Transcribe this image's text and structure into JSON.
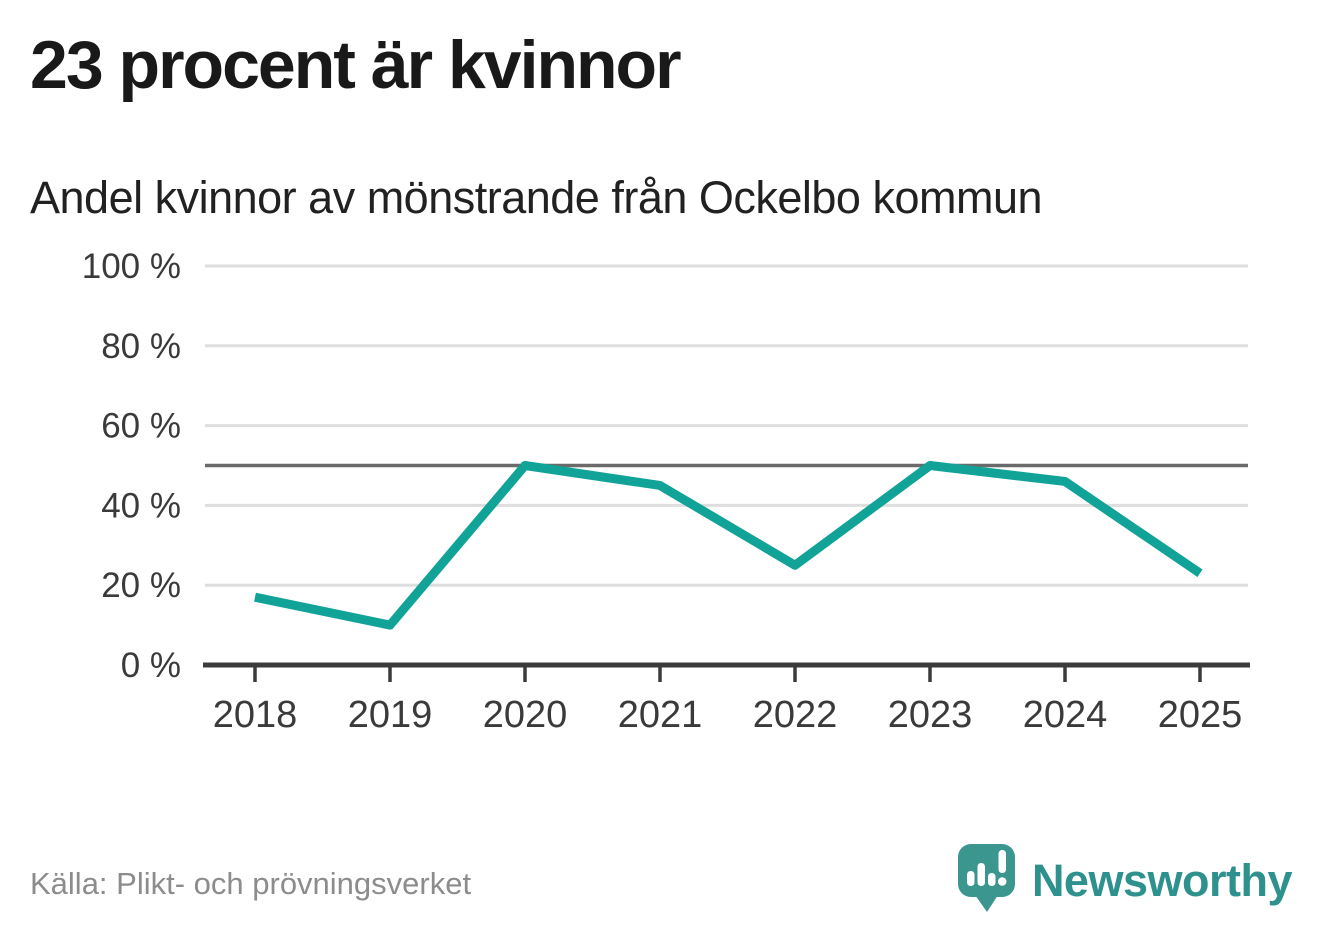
{
  "page": {
    "title": "23 procent är kvinnor",
    "subtitle": "Andel kvinnor av mönstrande från Ockelbo kommun",
    "source": "Källa: Plikt- och prövningsverket"
  },
  "brand": {
    "name": "Newsworthy",
    "icon": "newsworthy-bubble-barchart-icon",
    "wordmark_color": "#2e918e",
    "icon_color": "#3b968f"
  },
  "colors": {
    "background": "#ffffff",
    "line": "#11a398",
    "gridline": "#dedede",
    "reference_line": "#6a6a6a",
    "axis": "#3b3b3b",
    "axis_label": "#3a3a3a",
    "title_text": "#191919",
    "source_text": "#8c8c8c"
  },
  "chart_data": {
    "type": "line",
    "title": "23 procent är kvinnor",
    "subtitle": "Andel kvinnor av mönstrande från Ockelbo kommun",
    "x": [
      "2018",
      "2019",
      "2020",
      "2021",
      "2022",
      "2023",
      "2024",
      "2025"
    ],
    "series": [
      {
        "name": "Andel kvinnor av mönstrande",
        "values": [
          17,
          10,
          50,
          45,
          25,
          50,
          46,
          23
        ]
      }
    ],
    "unit": "%",
    "ylim": [
      0,
      100
    ],
    "yticks": [
      0,
      20,
      40,
      60,
      80,
      100
    ],
    "ytick_suffix": " %",
    "reference_line": 50,
    "grid": "horizontal",
    "legend": "none",
    "source": "Källa: Plikt- och prövningsverket"
  }
}
